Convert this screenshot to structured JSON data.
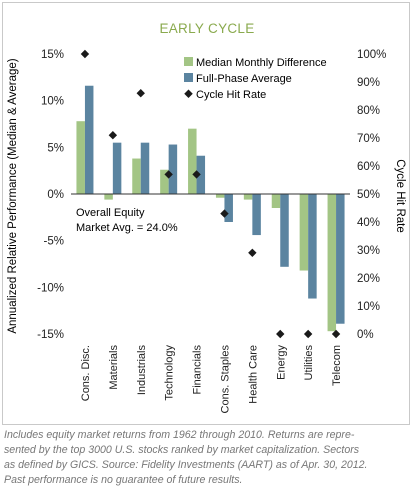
{
  "chart_data": {
    "type": "bar",
    "title": "EARLY CYCLE",
    "categories": [
      "Cons. Disc.",
      "Materials",
      "Industrials",
      "Technology",
      "Financials",
      "Cons. Staples",
      "Health Care",
      "Energy",
      "Utilities",
      "Telecom"
    ],
    "ylabel": "Annualized Relative Performance (Median & Average)",
    "y2label": "Cycle Hit Rate",
    "ylim": [
      -15,
      15
    ],
    "y2lim": [
      0,
      100
    ],
    "yticks": [
      "15%",
      "10%",
      "5%",
      "0%",
      "-5%",
      "-10%",
      "-15%"
    ],
    "y2ticks": [
      "100%",
      "90%",
      "80%",
      "70%",
      "60%",
      "50%",
      "40%",
      "30%",
      "20%",
      "10%",
      "0%"
    ],
    "grid": false,
    "legend_position": "top-right",
    "series": [
      {
        "name": "Median Monthly Difference",
        "kind": "bar",
        "axis": "left",
        "color": "#a3c585",
        "values": [
          7.8,
          -0.6,
          3.8,
          2.6,
          7.0,
          -0.4,
          -0.6,
          -1.5,
          -8.2,
          -14.7
        ]
      },
      {
        "name": "Full-Phase Average",
        "kind": "bar",
        "axis": "left",
        "color": "#5b84a0",
        "values": [
          11.6,
          5.5,
          5.5,
          5.3,
          4.1,
          -3.0,
          -4.4,
          -7.8,
          -11.2,
          -13.9
        ]
      },
      {
        "name": "Cycle Hit Rate",
        "kind": "marker",
        "axis": "right",
        "color": "#1a1a1a",
        "values": [
          100,
          71,
          86,
          57,
          57,
          43,
          29,
          0,
          0,
          0
        ]
      }
    ],
    "annotation": {
      "line1": "Overall Equity",
      "line2": "Market Avg. = 24.0%"
    }
  },
  "footnote": {
    "line1": "Includes equity market returns from 1962 through 2010. Returns are repre-",
    "line2": "sented by the top 3000 U.S. stocks ranked by market capitalization. Sectors",
    "line3": "as defined by GICS. Source: Fidelity Investments (AART) as of Apr. 30, 2012.",
    "line4": "Past performance is no guarantee of future results."
  },
  "colors": {
    "title": "#8aaa4e",
    "text": "#222222",
    "axis": "#333333",
    "border": "#c9c9c9",
    "footnote": "#777777"
  }
}
